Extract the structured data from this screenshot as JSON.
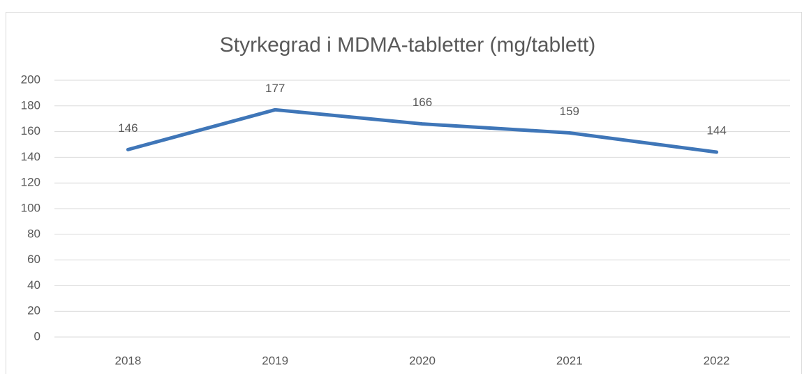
{
  "chart_data": {
    "type": "line",
    "title": "Styrkegrad i MDMA-tabletter (mg/tablett)",
    "categories": [
      "2018",
      "2019",
      "2020",
      "2021",
      "2022"
    ],
    "values": [
      146,
      177,
      166,
      159,
      144
    ],
    "color": "#3f76b8",
    "ylim": [
      0,
      200
    ],
    "yticks": [
      0,
      20,
      40,
      60,
      80,
      100,
      120,
      140,
      160,
      180,
      200
    ],
    "grid": true
  }
}
